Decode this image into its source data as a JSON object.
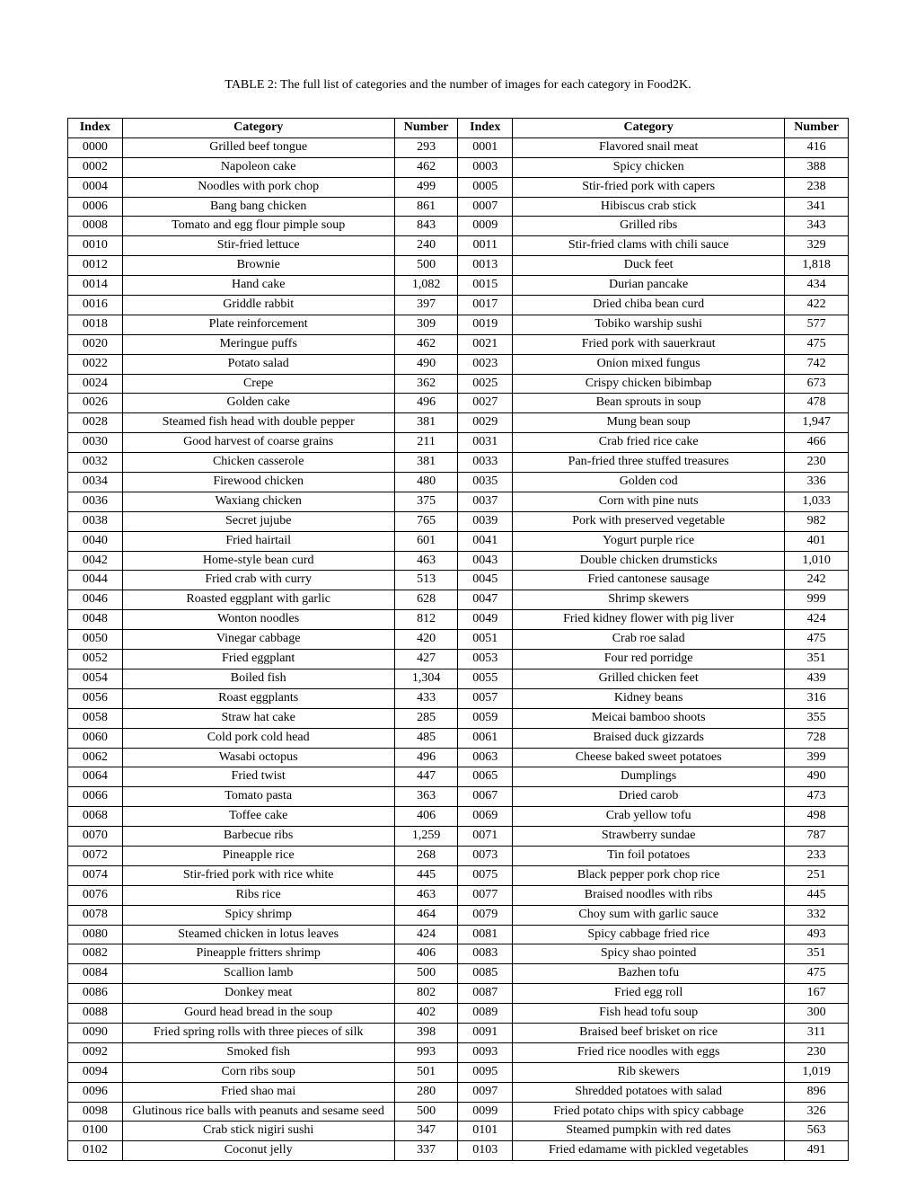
{
  "caption": "TABLE 2: The full list of categories and the number of images for each category in Food2K.",
  "headers": {
    "index": "Index",
    "category": "Category",
    "number": "Number"
  },
  "rows": [
    {
      "l_idx": "0000",
      "l_cat": "Grilled beef tongue",
      "l_num": "293",
      "r_idx": "0001",
      "r_cat": "Flavored snail meat",
      "r_num": "416"
    },
    {
      "l_idx": "0002",
      "l_cat": "Napoleon cake",
      "l_num": "462",
      "r_idx": "0003",
      "r_cat": "Spicy chicken",
      "r_num": "388"
    },
    {
      "l_idx": "0004",
      "l_cat": "Noodles with pork chop",
      "l_num": "499",
      "r_idx": "0005",
      "r_cat": "Stir-fried pork with capers",
      "r_num": "238"
    },
    {
      "l_idx": "0006",
      "l_cat": "Bang bang chicken",
      "l_num": "861",
      "r_idx": "0007",
      "r_cat": "Hibiscus crab stick",
      "r_num": "341"
    },
    {
      "l_idx": "0008",
      "l_cat": "Tomato and egg flour pimple soup",
      "l_num": "843",
      "r_idx": "0009",
      "r_cat": "Grilled ribs",
      "r_num": "343"
    },
    {
      "l_idx": "0010",
      "l_cat": "Stir-fried lettuce",
      "l_num": "240",
      "r_idx": "0011",
      "r_cat": "Stir-fried clams with chili sauce",
      "r_num": "329"
    },
    {
      "l_idx": "0012",
      "l_cat": "Brownie",
      "l_num": "500",
      "r_idx": "0013",
      "r_cat": "Duck feet",
      "r_num": "1,818"
    },
    {
      "l_idx": "0014",
      "l_cat": "Hand cake",
      "l_num": "1,082",
      "r_idx": "0015",
      "r_cat": "Durian pancake",
      "r_num": "434"
    },
    {
      "l_idx": "0016",
      "l_cat": "Griddle rabbit",
      "l_num": "397",
      "r_idx": "0017",
      "r_cat": "Dried chiba bean curd",
      "r_num": "422"
    },
    {
      "l_idx": "0018",
      "l_cat": "Plate reinforcement",
      "l_num": "309",
      "r_idx": "0019",
      "r_cat": "Tobiko warship sushi",
      "r_num": "577"
    },
    {
      "l_idx": "0020",
      "l_cat": "Meringue puffs",
      "l_num": "462",
      "r_idx": "0021",
      "r_cat": "Fried pork with sauerkraut",
      "r_num": "475"
    },
    {
      "l_idx": "0022",
      "l_cat": "Potato salad",
      "l_num": "490",
      "r_idx": "0023",
      "r_cat": "Onion mixed fungus",
      "r_num": "742"
    },
    {
      "l_idx": "0024",
      "l_cat": "Crepe",
      "l_num": "362",
      "r_idx": "0025",
      "r_cat": "Crispy chicken bibimbap",
      "r_num": "673"
    },
    {
      "l_idx": "0026",
      "l_cat": "Golden cake",
      "l_num": "496",
      "r_idx": "0027",
      "r_cat": "Bean sprouts in soup",
      "r_num": "478"
    },
    {
      "l_idx": "0028",
      "l_cat": "Steamed fish head with double pepper",
      "l_num": "381",
      "r_idx": "0029",
      "r_cat": "Mung bean soup",
      "r_num": "1,947"
    },
    {
      "l_idx": "0030",
      "l_cat": "Good harvest of coarse grains",
      "l_num": "211",
      "r_idx": "0031",
      "r_cat": "Crab fried rice cake",
      "r_num": "466"
    },
    {
      "l_idx": "0032",
      "l_cat": "Chicken casserole",
      "l_num": "381",
      "r_idx": "0033",
      "r_cat": "Pan-fried three stuffed treasures",
      "r_num": "230"
    },
    {
      "l_idx": "0034",
      "l_cat": "Firewood chicken",
      "l_num": "480",
      "r_idx": "0035",
      "r_cat": "Golden cod",
      "r_num": "336"
    },
    {
      "l_idx": "0036",
      "l_cat": "Waxiang chicken",
      "l_num": "375",
      "r_idx": "0037",
      "r_cat": "Corn with pine nuts",
      "r_num": "1,033"
    },
    {
      "l_idx": "0038",
      "l_cat": "Secret jujube",
      "l_num": "765",
      "r_idx": "0039",
      "r_cat": "Pork with preserved vegetable",
      "r_num": "982"
    },
    {
      "l_idx": "0040",
      "l_cat": "Fried hairtail",
      "l_num": "601",
      "r_idx": "0041",
      "r_cat": "Yogurt purple rice",
      "r_num": "401"
    },
    {
      "l_idx": "0042",
      "l_cat": "Home-style bean curd",
      "l_num": "463",
      "r_idx": "0043",
      "r_cat": "Double chicken drumsticks",
      "r_num": "1,010"
    },
    {
      "l_idx": "0044",
      "l_cat": "Fried crab with curry",
      "l_num": "513",
      "r_idx": "0045",
      "r_cat": "Fried cantonese sausage",
      "r_num": "242"
    },
    {
      "l_idx": "0046",
      "l_cat": "Roasted eggplant with garlic",
      "l_num": "628",
      "r_idx": "0047",
      "r_cat": "Shrimp skewers",
      "r_num": "999"
    },
    {
      "l_idx": "0048",
      "l_cat": "Wonton noodles",
      "l_num": "812",
      "r_idx": "0049",
      "r_cat": "Fried kidney flower with pig liver",
      "r_num": "424"
    },
    {
      "l_idx": "0050",
      "l_cat": "Vinegar cabbage",
      "l_num": "420",
      "r_idx": "0051",
      "r_cat": "Crab roe salad",
      "r_num": "475"
    },
    {
      "l_idx": "0052",
      "l_cat": "Fried eggplant",
      "l_num": "427",
      "r_idx": "0053",
      "r_cat": "Four red porridge",
      "r_num": "351"
    },
    {
      "l_idx": "0054",
      "l_cat": "Boiled fish",
      "l_num": "1,304",
      "r_idx": "0055",
      "r_cat": "Grilled chicken feet",
      "r_num": "439"
    },
    {
      "l_idx": "0056",
      "l_cat": "Roast eggplants",
      "l_num": "433",
      "r_idx": "0057",
      "r_cat": "Kidney beans",
      "r_num": "316"
    },
    {
      "l_idx": "0058",
      "l_cat": "Straw hat cake",
      "l_num": "285",
      "r_idx": "0059",
      "r_cat": "Meicai bamboo shoots",
      "r_num": "355"
    },
    {
      "l_idx": "0060",
      "l_cat": "Cold pork cold head",
      "l_num": "485",
      "r_idx": "0061",
      "r_cat": "Braised duck gizzards",
      "r_num": "728"
    },
    {
      "l_idx": "0062",
      "l_cat": "Wasabi octopus",
      "l_num": "496",
      "r_idx": "0063",
      "r_cat": "Cheese baked sweet potatoes",
      "r_num": "399"
    },
    {
      "l_idx": "0064",
      "l_cat": "Fried twist",
      "l_num": "447",
      "r_idx": "0065",
      "r_cat": "Dumplings",
      "r_num": "490"
    },
    {
      "l_idx": "0066",
      "l_cat": "Tomato pasta",
      "l_num": "363",
      "r_idx": "0067",
      "r_cat": "Dried carob",
      "r_num": "473"
    },
    {
      "l_idx": "0068",
      "l_cat": "Toffee cake",
      "l_num": "406",
      "r_idx": "0069",
      "r_cat": "Crab yellow tofu",
      "r_num": "498"
    },
    {
      "l_idx": "0070",
      "l_cat": "Barbecue ribs",
      "l_num": "1,259",
      "r_idx": "0071",
      "r_cat": "Strawberry sundae",
      "r_num": "787"
    },
    {
      "l_idx": "0072",
      "l_cat": "Pineapple rice",
      "l_num": "268",
      "r_idx": "0073",
      "r_cat": "Tin foil potatoes",
      "r_num": "233"
    },
    {
      "l_idx": "0074",
      "l_cat": "Stir-fried pork with rice white",
      "l_num": "445",
      "r_idx": "0075",
      "r_cat": "Black pepper pork chop rice",
      "r_num": "251"
    },
    {
      "l_idx": "0076",
      "l_cat": "Ribs rice",
      "l_num": "463",
      "r_idx": "0077",
      "r_cat": "Braised noodles with ribs",
      "r_num": "445"
    },
    {
      "l_idx": "0078",
      "l_cat": "Spicy shrimp",
      "l_num": "464",
      "r_idx": "0079",
      "r_cat": "Choy sum with garlic sauce",
      "r_num": "332"
    },
    {
      "l_idx": "0080",
      "l_cat": "Steamed chicken in lotus leaves",
      "l_num": "424",
      "r_idx": "0081",
      "r_cat": "Spicy cabbage fried rice",
      "r_num": "493"
    },
    {
      "l_idx": "0082",
      "l_cat": "Pineapple fritters shrimp",
      "l_num": "406",
      "r_idx": "0083",
      "r_cat": "Spicy shao pointed",
      "r_num": "351"
    },
    {
      "l_idx": "0084",
      "l_cat": "Scallion lamb",
      "l_num": "500",
      "r_idx": "0085",
      "r_cat": "Bazhen tofu",
      "r_num": "475"
    },
    {
      "l_idx": "0086",
      "l_cat": "Donkey meat",
      "l_num": "802",
      "r_idx": "0087",
      "r_cat": "Fried egg roll",
      "r_num": "167"
    },
    {
      "l_idx": "0088",
      "l_cat": "Gourd head bread in the soup",
      "l_num": "402",
      "r_idx": "0089",
      "r_cat": "Fish head tofu soup",
      "r_num": "300"
    },
    {
      "l_idx": "0090",
      "l_cat": "Fried spring rolls with three pieces of silk",
      "l_num": "398",
      "r_idx": "0091",
      "r_cat": "Braised beef brisket on rice",
      "r_num": "311"
    },
    {
      "l_idx": "0092",
      "l_cat": "Smoked fish",
      "l_num": "993",
      "r_idx": "0093",
      "r_cat": "Fried rice noodles with eggs",
      "r_num": "230"
    },
    {
      "l_idx": "0094",
      "l_cat": "Corn ribs soup",
      "l_num": "501",
      "r_idx": "0095",
      "r_cat": "Rib skewers",
      "r_num": "1,019"
    },
    {
      "l_idx": "0096",
      "l_cat": "Fried shao mai",
      "l_num": "280",
      "r_idx": "0097",
      "r_cat": "Shredded potatoes with salad",
      "r_num": "896"
    },
    {
      "l_idx": "0098",
      "l_cat": "Glutinous rice balls with peanuts and sesame seed",
      "l_num": "500",
      "r_idx": "0099",
      "r_cat": "Fried potato chips with spicy cabbage",
      "r_num": "326"
    },
    {
      "l_idx": "0100",
      "l_cat": "Crab stick nigiri sushi",
      "l_num": "347",
      "r_idx": "0101",
      "r_cat": "Steamed pumpkin with red dates",
      "r_num": "563"
    },
    {
      "l_idx": "0102",
      "l_cat": "Coconut jelly",
      "l_num": "337",
      "r_idx": "0103",
      "r_cat": "Fried edamame with pickled vegetables",
      "r_num": "491"
    }
  ]
}
